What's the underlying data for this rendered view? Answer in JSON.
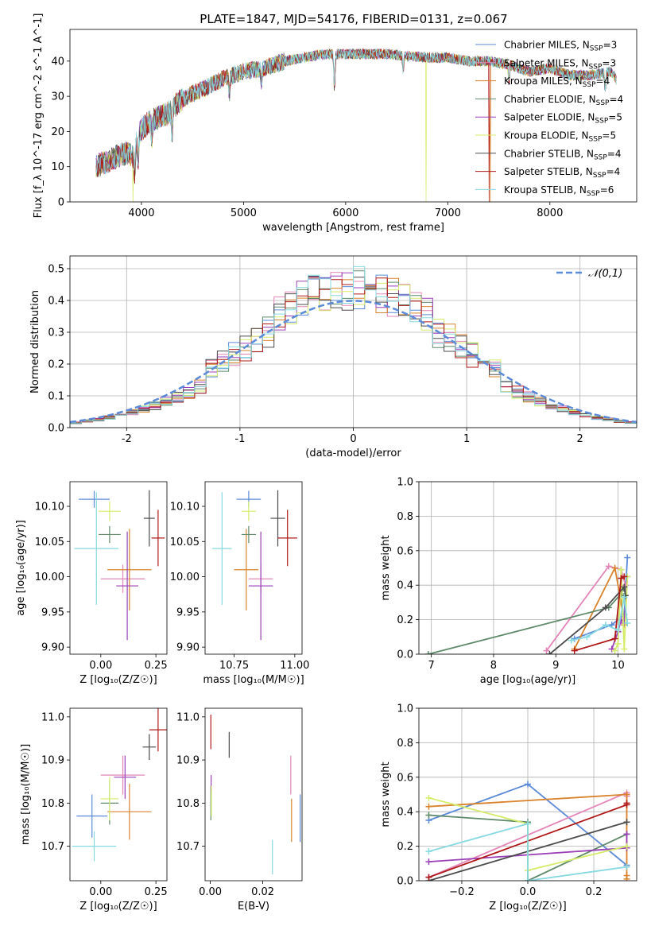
{
  "title": "PLATE=1847, MJD=54176, FIBERID=0131, z=0.067",
  "colors": {
    "Chabrier MILES": "#5b8ad8",
    "Salpeter MILES": "#e385b8",
    "Kroupa MILES": "#d9822b",
    "Chabrier ELODIE": "#5f8a6a",
    "Salpeter ELODIE": "#9b3fb8",
    "Kroupa ELODIE": "#d4ec6a",
    "Chabrier STELIB": "#4b4b4b",
    "Salpeter STELIB": "#b01818",
    "Kroupa STELIB": "#86d9e0"
  },
  "chart_data": [
    {
      "id": "spectrum",
      "type": "line",
      "title": "PLATE=1847, MJD=54176, FIBERID=0131, z=0.067",
      "xlabel": "wavelength [Angstrom, rest frame]",
      "ylabel": "Flux [f_λ 10^-17 erg cm^-2 s^-1 A^-1]",
      "xlim": [
        3300,
        8850
      ],
      "ylim": [
        0,
        49
      ],
      "xticks": [
        4000,
        5000,
        6000,
        7000,
        8000
      ],
      "yticks": [
        0,
        10,
        20,
        30,
        40
      ],
      "grid": false,
      "legend_loc": "right",
      "legend": [
        {
          "label": "Chabrier MILES, N",
          "sub": "SSP",
          "suffix": "=3"
        },
        {
          "label": "Salpeter MILES, N",
          "sub": "SSP",
          "suffix": "=3"
        },
        {
          "label": "Kroupa MILES, N",
          "sub": "SSP",
          "suffix": "=4"
        },
        {
          "label": "Chabrier ELODIE, N",
          "sub": "SSP",
          "suffix": "=4"
        },
        {
          "label": "Salpeter ELODIE, N",
          "sub": "SSP",
          "suffix": "=5"
        },
        {
          "label": "Kroupa ELODIE, N",
          "sub": "SSP",
          "suffix": "=5"
        },
        {
          "label": "Chabrier STELIB, N",
          "sub": "SSP",
          "suffix": "=4"
        },
        {
          "label": "Salpeter STELIB, N",
          "sub": "SSP",
          "suffix": "=4"
        },
        {
          "label": "Kroupa STELIB, N",
          "sub": "SSP",
          "suffix": "=6"
        }
      ],
      "continuum": [
        [
          3550,
          10
        ],
        [
          3700,
          12
        ],
        [
          3850,
          14
        ],
        [
          3920,
          13
        ],
        [
          3980,
          20
        ],
        [
          4050,
          22
        ],
        [
          4150,
          24
        ],
        [
          4250,
          25
        ],
        [
          4350,
          28
        ],
        [
          4450,
          30
        ],
        [
          4600,
          32
        ],
        [
          4800,
          35
        ],
        [
          5000,
          37
        ],
        [
          5200,
          38
        ],
        [
          5400,
          40
        ],
        [
          5600,
          41
        ],
        [
          5800,
          42
        ],
        [
          6000,
          42
        ],
        [
          6200,
          42
        ],
        [
          6400,
          42
        ],
        [
          6600,
          41.5
        ],
        [
          6800,
          41
        ],
        [
          7000,
          41
        ],
        [
          7200,
          40
        ],
        [
          7400,
          40
        ],
        [
          7600,
          39
        ],
        [
          7800,
          37
        ],
        [
          8000,
          38
        ],
        [
          8200,
          36
        ],
        [
          8400,
          36
        ],
        [
          8600,
          37
        ],
        [
          8650,
          35
        ]
      ],
      "absorption": [
        [
          3934,
          7
        ],
        [
          3968,
          8
        ],
        [
          4102,
          5
        ],
        [
          4300,
          8
        ],
        [
          4861,
          5
        ],
        [
          5175,
          4
        ],
        [
          5890,
          10
        ],
        [
          6563,
          4
        ],
        [
          7600,
          5
        ],
        [
          8542,
          5
        ],
        [
          8662,
          5
        ]
      ],
      "drops": [
        [
          6785,
          "Kroupa ELODIE"
        ],
        [
          7405,
          "Salpeter STELIB"
        ],
        [
          7415,
          "Kroupa MILES"
        ],
        [
          3915,
          "Kroupa ELODIE"
        ]
      ]
    },
    {
      "id": "residuals",
      "type": "histogram",
      "xlabel": "(data-model)/error",
      "ylabel": "Normed distribution",
      "xlim": [
        -2.5,
        2.5
      ],
      "ylim": [
        0,
        0.54
      ],
      "xticks": [
        -2,
        -1,
        0,
        1,
        2
      ],
      "yticks": [
        0.0,
        0.1,
        0.2,
        0.3,
        0.4,
        0.5
      ],
      "grid": true,
      "legend_loc": "upper right",
      "gauss_label": "𝒩(0,1)"
    },
    {
      "id": "Z_age",
      "type": "errorbar",
      "xlabel": "Z [log₁₀(Z/Z☉)]",
      "ylabel": "age  [log₁₀(age/yr)]",
      "xlim": [
        -0.14,
        0.3
      ],
      "ylim": [
        9.89,
        10.135
      ],
      "xticks": [
        0.0,
        0.25
      ],
      "xticklabels": [
        "0.00",
        "0.25"
      ],
      "yticks": [
        9.9,
        9.95,
        10.0,
        10.05,
        10.1
      ],
      "grid": false,
      "points": [
        {
          "model": "Chabrier MILES",
          "x": -0.03,
          "xerr": 0.07,
          "y": 10.11,
          "yerr": 0.012
        },
        {
          "model": "Salpeter MILES",
          "x": 0.1,
          "xerr": 0.1,
          "y": 9.997,
          "yerr": 0.02
        },
        {
          "model": "Kroupa MILES",
          "x": 0.13,
          "xerr": 0.1,
          "y": 10.01,
          "yerr": 0.058
        },
        {
          "model": "Chabrier ELODIE",
          "x": 0.04,
          "xerr": 0.05,
          "y": 10.06,
          "yerr": 0.012
        },
        {
          "model": "Salpeter ELODIE",
          "x": 0.12,
          "xerr": 0.05,
          "y": 9.987,
          "yerr": 0.077
        },
        {
          "model": "Kroupa ELODIE",
          "x": 0.04,
          "xerr": 0.05,
          "y": 10.093,
          "yerr": 0.014
        },
        {
          "model": "Chabrier STELIB",
          "x": 0.22,
          "xerr": 0.025,
          "y": 10.083,
          "yerr": 0.04
        },
        {
          "model": "Salpeter STELIB",
          "x": 0.26,
          "xerr": 0.03,
          "y": 10.055,
          "yerr": 0.04
        },
        {
          "model": "Kroupa STELIB",
          "x": -0.02,
          "xerr": 0.1,
          "y": 10.04,
          "yerr": 0.08
        }
      ]
    },
    {
      "id": "mass_age",
      "type": "errorbar",
      "xlabel": "mass [log₁₀(M/M☉)]",
      "ylabel": "",
      "xlim": [
        10.63,
        11.03
      ],
      "ylim": [
        9.89,
        10.135
      ],
      "xticks": [
        10.75,
        11.0
      ],
      "xticklabels": [
        "10.75",
        "11.00"
      ],
      "yticks": [
        9.9,
        9.95,
        10.0,
        10.05,
        10.1
      ],
      "grid": false,
      "points": [
        {
          "model": "Chabrier MILES",
          "x": 10.81,
          "xerr": 0.05,
          "y": 10.11,
          "yerr": 0.012
        },
        {
          "model": "Salpeter MILES",
          "x": 10.86,
          "xerr": 0.05,
          "y": 9.997,
          "yerr": 0.02
        },
        {
          "model": "Kroupa MILES",
          "x": 10.8,
          "xerr": 0.05,
          "y": 10.01,
          "yerr": 0.058
        },
        {
          "model": "Chabrier ELODIE",
          "x": 10.81,
          "xerr": 0.03,
          "y": 10.06,
          "yerr": 0.012
        },
        {
          "model": "Salpeter ELODIE",
          "x": 10.86,
          "xerr": 0.05,
          "y": 9.987,
          "yerr": 0.077
        },
        {
          "model": "Kroupa ELODIE",
          "x": 10.81,
          "xerr": 0.03,
          "y": 10.093,
          "yerr": 0.014
        },
        {
          "model": "Chabrier STELIB",
          "x": 10.93,
          "xerr": 0.03,
          "y": 10.083,
          "yerr": 0.04
        },
        {
          "model": "Salpeter STELIB",
          "x": 10.97,
          "xerr": 0.04,
          "y": 10.055,
          "yerr": 0.04
        },
        {
          "model": "Kroupa STELIB",
          "x": 10.7,
          "xerr": 0.04,
          "y": 10.04,
          "yerr": 0.08
        }
      ]
    },
    {
      "id": "age_weight",
      "type": "line",
      "xlabel": "age  [log₁₀(age/yr)]",
      "ylabel": "mass weight",
      "xlim": [
        6.8,
        10.3
      ],
      "ylim": [
        0,
        1
      ],
      "xticks": [
        7,
        8,
        9,
        10
      ],
      "yticks": [
        0.0,
        0.2,
        0.4,
        0.6,
        0.8,
        1.0
      ],
      "grid": true,
      "series": [
        {
          "model": "Chabrier MILES",
          "x": [
            9.3,
            9.9,
            10.1,
            10.15
          ],
          "y": [
            0.09,
            0.17,
            0.23,
            0.56
          ]
        },
        {
          "model": "Salpeter MILES",
          "x": [
            8.85,
            9.85,
            10.05,
            10.12
          ],
          "y": [
            0.02,
            0.51,
            0.49,
            0.4
          ]
        },
        {
          "model": "Kroupa MILES",
          "x": [
            9.3,
            9.95,
            10.05,
            10.1
          ],
          "y": [
            0.03,
            0.5,
            0.3,
            0.17
          ]
        },
        {
          "model": "Chabrier ELODIE",
          "x": [
            6.95,
            9.85,
            10.05,
            10.1
          ],
          "y": [
            0.0,
            0.27,
            0.35,
            0.38
          ]
        },
        {
          "model": "Salpeter ELODIE",
          "x": [
            9.9,
            10.0,
            10.05,
            10.1,
            10.15
          ],
          "y": [
            0.03,
            0.13,
            0.2,
            0.18,
            0.45
          ]
        },
        {
          "model": "Kroupa ELODIE",
          "x": [
            9.95,
            10.0,
            10.05,
            10.1,
            10.15
          ],
          "y": [
            0.02,
            0.06,
            0.49,
            0.03,
            0.45
          ]
        },
        {
          "model": "Chabrier STELIB",
          "x": [
            8.9,
            9.8,
            10.1,
            10.12
          ],
          "y": [
            0.0,
            0.27,
            0.39,
            0.34
          ]
        },
        {
          "model": "Salpeter STELIB",
          "x": [
            9.3,
            9.95,
            10.05,
            10.1
          ],
          "y": [
            0.02,
            0.09,
            0.44,
            0.45
          ]
        },
        {
          "model": "Kroupa STELIB",
          "x": [
            9.25,
            9.5,
            9.8,
            10.0,
            10.1,
            10.15
          ],
          "y": [
            0.08,
            0.1,
            0.17,
            0.14,
            0.33,
            0.18
          ]
        }
      ]
    },
    {
      "id": "Z_mass",
      "type": "errorbar",
      "xlabel": "Z [log₁₀(Z/Z☉)]",
      "ylabel": "mass [log₁₀(M/M☉)]",
      "xlim": [
        -0.14,
        0.3
      ],
      "ylim": [
        10.62,
        11.02
      ],
      "xticks": [
        0.0,
        0.25
      ],
      "xticklabels": [
        "0.00",
        "0.25"
      ],
      "yticks": [
        10.7,
        10.8,
        10.9,
        11.0
      ],
      "grid": false,
      "points": [
        {
          "model": "Chabrier MILES",
          "x": -0.04,
          "xerr": 0.07,
          "y": 10.77,
          "yerr": 0.05
        },
        {
          "model": "Salpeter MILES",
          "x": 0.1,
          "xerr": 0.1,
          "y": 10.865,
          "yerr": 0.045
        },
        {
          "model": "Kroupa MILES",
          "x": 0.13,
          "xerr": 0.1,
          "y": 10.78,
          "yerr": 0.065
        },
        {
          "model": "Chabrier ELODIE",
          "x": 0.04,
          "xerr": 0.04,
          "y": 10.8,
          "yerr": 0.05
        },
        {
          "model": "Salpeter ELODIE",
          "x": 0.11,
          "xerr": 0.05,
          "y": 10.86,
          "yerr": 0.05
        },
        {
          "model": "Kroupa ELODIE",
          "x": 0.04,
          "xerr": 0.04,
          "y": 10.81,
          "yerr": 0.05
        },
        {
          "model": "Chabrier STELIB",
          "x": 0.22,
          "xerr": 0.03,
          "y": 10.93,
          "yerr": 0.03
        },
        {
          "model": "Salpeter STELIB",
          "x": 0.26,
          "xerr": 0.04,
          "y": 10.97,
          "yerr": 0.05
        },
        {
          "model": "Kroupa STELIB",
          "x": -0.03,
          "xerr": 0.1,
          "y": 10.7,
          "yerr": 0.035
        }
      ]
    },
    {
      "id": "ebv_mass",
      "type": "errorbar",
      "xlabel": "E(B-V)",
      "ylabel": "",
      "xlim": [
        -0.002,
        0.035
      ],
      "ylim": [
        10.62,
        11.02
      ],
      "xticks": [
        0.0,
        0.02
      ],
      "xticklabels": [
        "0.00",
        "0.02"
      ],
      "yticks": [
        10.7,
        10.8,
        10.9,
        11.0
      ],
      "grid": false,
      "points": [
        {
          "model": "Chabrier MILES",
          "x": 0.0343,
          "y": 10.765,
          "yerr": 0.055
        },
        {
          "model": "Salpeter MILES",
          "x": 0.0307,
          "y": 10.865,
          "yerr": 0.045
        },
        {
          "model": "Kroupa MILES",
          "x": 0.031,
          "y": 10.76,
          "yerr": 0.05
        },
        {
          "model": "Chabrier ELODIE",
          "x": 0.0002,
          "y": 10.8,
          "yerr": 0.04
        },
        {
          "model": "Salpeter ELODIE",
          "x": 0.0003,
          "y": 10.845,
          "yerr": 0.02
        },
        {
          "model": "Kroupa ELODIE",
          "x": 0.0004,
          "y": 10.805,
          "yerr": 0.035
        },
        {
          "model": "Chabrier STELIB",
          "x": 0.0072,
          "y": 10.935,
          "yerr": 0.03
        },
        {
          "model": "Salpeter STELIB",
          "x": 0.0002,
          "y": 10.965,
          "yerr": 0.04
        },
        {
          "model": "Kroupa STELIB",
          "x": 0.0237,
          "y": 10.675,
          "yerr": 0.04
        }
      ]
    },
    {
      "id": "Z_weight",
      "type": "line",
      "xlabel": "Z [log₁₀(Z/Z☉)]",
      "ylabel": "mass weight",
      "xlim": [
        -0.33,
        0.33
      ],
      "ylim": [
        0,
        1
      ],
      "xticks": [
        -0.2,
        0.0,
        0.2
      ],
      "xticklabels": [
        "−0.2",
        "0.0",
        "0.2"
      ],
      "yticks": [
        0.0,
        0.2,
        0.4,
        0.6,
        0.8,
        1.0
      ],
      "grid": true,
      "series": [
        {
          "model": "Chabrier MILES",
          "x": [
            -0.3,
            0.0,
            0.3
          ],
          "y": [
            0.35,
            0.56,
            0.09
          ]
        },
        {
          "model": "Salpeter MILES",
          "x": [
            -0.3,
            0.3,
            0.3
          ],
          "y": [
            0.02,
            0.51,
            0.49
          ]
        },
        {
          "model": "Kroupa MILES",
          "x": [
            -0.3,
            0.3,
            0.3,
            0.3
          ],
          "y": [
            0.43,
            0.5,
            0.03,
            0.01
          ]
        },
        {
          "model": "Chabrier ELODIE",
          "x": [
            -0.3,
            0.0,
            0.0,
            0.3
          ],
          "y": [
            0.38,
            0.34,
            0.0,
            0.27
          ]
        },
        {
          "model": "Salpeter ELODIE",
          "x": [
            -0.3,
            0.3,
            0.3
          ],
          "y": [
            0.11,
            0.19,
            0.27
          ]
        },
        {
          "model": "Kroupa ELODIE",
          "x": [
            -0.3,
            0.0,
            0.0,
            0.3
          ],
          "y": [
            0.48,
            0.33,
            0.06,
            0.2
          ]
        },
        {
          "model": "Chabrier STELIB",
          "x": [
            -0.3,
            0.3
          ],
          "y": [
            0.0,
            0.34
          ]
        },
        {
          "model": "Salpeter STELIB",
          "x": [
            -0.3,
            0.3,
            0.3
          ],
          "y": [
            0.02,
            0.44,
            0.45
          ]
        },
        {
          "model": "Kroupa STELIB",
          "x": [
            -0.3,
            0.0,
            0.0,
            0.3
          ],
          "y": [
            0.17,
            0.33,
            0.0,
            0.08
          ]
        }
      ]
    }
  ]
}
